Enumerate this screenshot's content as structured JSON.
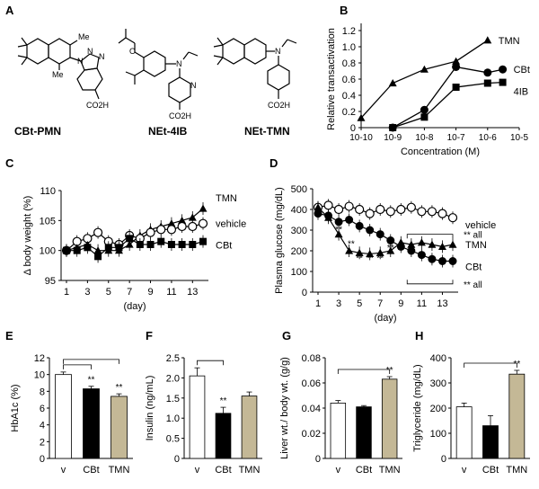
{
  "panels": {
    "A": {
      "label": "A",
      "compounds": [
        {
          "name": "CBt-PMN",
          "atoms": {
            "me1": "Me",
            "me2": "Me",
            "n1": "N",
            "n2": "N",
            "n3": "N",
            "acid": "CO2H"
          }
        },
        {
          "name": "NEt-4IB",
          "atoms": {
            "o": "O",
            "n": "N",
            "npy": "N",
            "acid": "CO2H"
          }
        },
        {
          "name": "NEt-TMN",
          "atoms": {
            "n": "N",
            "acid": "CO2H"
          }
        }
      ]
    },
    "B": {
      "label": "B"
    },
    "C": {
      "label": "C"
    },
    "D": {
      "label": "D"
    },
    "E": {
      "label": "E"
    },
    "F": {
      "label": "F"
    },
    "G": {
      "label": "G"
    },
    "H": {
      "label": "H"
    }
  },
  "chart_data": [
    {
      "id": "B",
      "type": "line",
      "xlabel": "Concentration (M)",
      "ylabel": "Relative transactivation",
      "x_scale": "log",
      "x_ticks": [
        "10-10",
        "10-9",
        "10-8",
        "10-7",
        "10-6",
        "10-5"
      ],
      "y_ticks": [
        "0",
        "0.2",
        "0.4",
        "0.6",
        "0.8",
        "1.0",
        "1.2"
      ],
      "ylim": [
        0,
        1.2
      ],
      "series": [
        {
          "name": "TMN",
          "marker": "triangle",
          "x": [
            1e-10,
            1e-09,
            1e-08,
            1e-07,
            1e-06
          ],
          "y": [
            0.12,
            0.55,
            0.72,
            0.82,
            1.08
          ]
        },
        {
          "name": "CBt",
          "marker": "circle",
          "x": [
            1e-09,
            1e-08,
            1e-07,
            1e-06,
            3e-06
          ],
          "y": [
            0.0,
            0.22,
            0.75,
            0.68,
            0.72
          ]
        },
        {
          "name": "4IB",
          "marker": "square",
          "x": [
            1e-09,
            1e-08,
            1e-07,
            1e-06,
            3e-06
          ],
          "y": [
            0.0,
            0.13,
            0.5,
            0.55,
            0.56
          ]
        }
      ]
    },
    {
      "id": "C",
      "type": "line",
      "xlabel": "(day)",
      "ylabel": "Δ body weight (%)",
      "x_ticks": [
        "1",
        "3",
        "5",
        "7",
        "9",
        "11",
        "13"
      ],
      "y_ticks": [
        "95",
        "100",
        "105",
        "110"
      ],
      "xlim": [
        1,
        14
      ],
      "ylim": [
        95,
        110
      ],
      "series": [
        {
          "name": "TMN",
          "marker": "triangle",
          "x": [
            1,
            2,
            3,
            4,
            5,
            6,
            7,
            8,
            9,
            10,
            11,
            12,
            13,
            14
          ],
          "y": [
            100,
            100.5,
            101,
            100,
            100,
            100,
            101,
            102.5,
            103.5,
            104,
            104.5,
            105,
            105.5,
            107
          ]
        },
        {
          "name": "vehicle",
          "marker": "open-circle",
          "x": [
            1,
            2,
            3,
            4,
            5,
            6,
            7,
            8,
            9,
            10,
            11,
            12,
            13,
            14
          ],
          "y": [
            100,
            101.5,
            102,
            103,
            101.5,
            101,
            102.5,
            102,
            103,
            103.5,
            103.5,
            104,
            104,
            104.5
          ]
        },
        {
          "name": "CBt",
          "marker": "square",
          "x": [
            1,
            2,
            3,
            4,
            5,
            6,
            7,
            8,
            9,
            10,
            11,
            12,
            13,
            14
          ],
          "y": [
            100,
            100,
            100.5,
            99,
            100.5,
            100.5,
            102,
            101,
            101,
            101.5,
            101,
            101,
            101,
            101.5
          ]
        }
      ]
    },
    {
      "id": "D",
      "type": "line",
      "xlabel": "(day)",
      "ylabel": "Plasma glucose (mg/dL)",
      "x_ticks": [
        "1",
        "3",
        "5",
        "7",
        "9",
        "11",
        "13"
      ],
      "y_ticks": [
        "0",
        "100",
        "200",
        "300",
        "400",
        "500"
      ],
      "xlim": [
        1,
        14
      ],
      "ylim": [
        0,
        500
      ],
      "series": [
        {
          "name": "vehicle",
          "marker": "open-circle",
          "x": [
            1,
            2,
            3,
            4,
            5,
            6,
            7,
            8,
            9,
            10,
            11,
            12,
            13,
            14
          ],
          "y": [
            410,
            420,
            400,
            415,
            400,
            380,
            400,
            390,
            400,
            410,
            390,
            390,
            380,
            360
          ]
        },
        {
          "name": "TMN",
          "marker": "triangle",
          "x": [
            1,
            2,
            3,
            4,
            5,
            6,
            7,
            8,
            9,
            10,
            11,
            12,
            13,
            14
          ],
          "y": [
            410,
            360,
            280,
            200,
            190,
            185,
            190,
            200,
            240,
            230,
            240,
            230,
            220,
            230
          ]
        },
        {
          "name": "CBt",
          "marker": "circle",
          "x": [
            1,
            2,
            3,
            4,
            5,
            6,
            7,
            8,
            9,
            10,
            11,
            12,
            13,
            14
          ],
          "y": [
            380,
            370,
            340,
            350,
            320,
            300,
            280,
            250,
            220,
            200,
            180,
            160,
            150,
            150
          ]
        }
      ],
      "annotations": [
        "** all",
        "** all",
        "**"
      ]
    },
    {
      "id": "E",
      "type": "bar",
      "ylabel": "HbA1c (%)",
      "categories": [
        "v",
        "CBt",
        "TMN"
      ],
      "values": [
        10.0,
        8.3,
        7.4
      ],
      "errors": [
        0.3,
        0.3,
        0.3
      ],
      "sig": [
        "",
        "**",
        "**"
      ],
      "y_ticks": [
        "0",
        "2",
        "4",
        "6",
        "8",
        "10",
        "12"
      ],
      "ylim": [
        0,
        12
      ]
    },
    {
      "id": "F",
      "type": "bar",
      "ylabel": "Insulin (ng/mL)",
      "categories": [
        "v",
        "CBt",
        "TMN"
      ],
      "values": [
        2.05,
        1.12,
        1.55
      ],
      "errors": [
        0.2,
        0.15,
        0.1
      ],
      "sig": [
        "",
        "**",
        ""
      ],
      "y_ticks": [
        "0",
        "0.5",
        "1.0",
        "1.5",
        "2.0",
        "2.5"
      ],
      "ylim": [
        0,
        2.5
      ]
    },
    {
      "id": "G",
      "type": "bar",
      "ylabel": "Liver wt./ body wt. (g/g)",
      "categories": [
        "v",
        "CBt",
        "TMN"
      ],
      "values": [
        0.044,
        0.041,
        0.063
      ],
      "errors": [
        0.002,
        0.001,
        0.002
      ],
      "sig": [
        "",
        "",
        "**"
      ],
      "y_ticks": [
        "0",
        "0.02",
        "0.04",
        "0.06",
        "0.08"
      ],
      "ylim": [
        0,
        0.08
      ]
    },
    {
      "id": "H",
      "type": "bar",
      "ylabel": "Triglyceride (mg/dL)",
      "categories": [
        "v",
        "CBt",
        "TMN"
      ],
      "values": [
        205,
        130,
        335
      ],
      "errors": [
        15,
        40,
        15
      ],
      "sig": [
        "",
        "",
        "**"
      ],
      "y_ticks": [
        "0",
        "100",
        "200",
        "300",
        "400"
      ],
      "ylim": [
        0,
        400
      ]
    }
  ],
  "colors": {
    "vehicle_bar": "#ffffff",
    "cbt_bar": "#000000",
    "tmn_bar": "#c4b896",
    "ink": "#000000"
  }
}
